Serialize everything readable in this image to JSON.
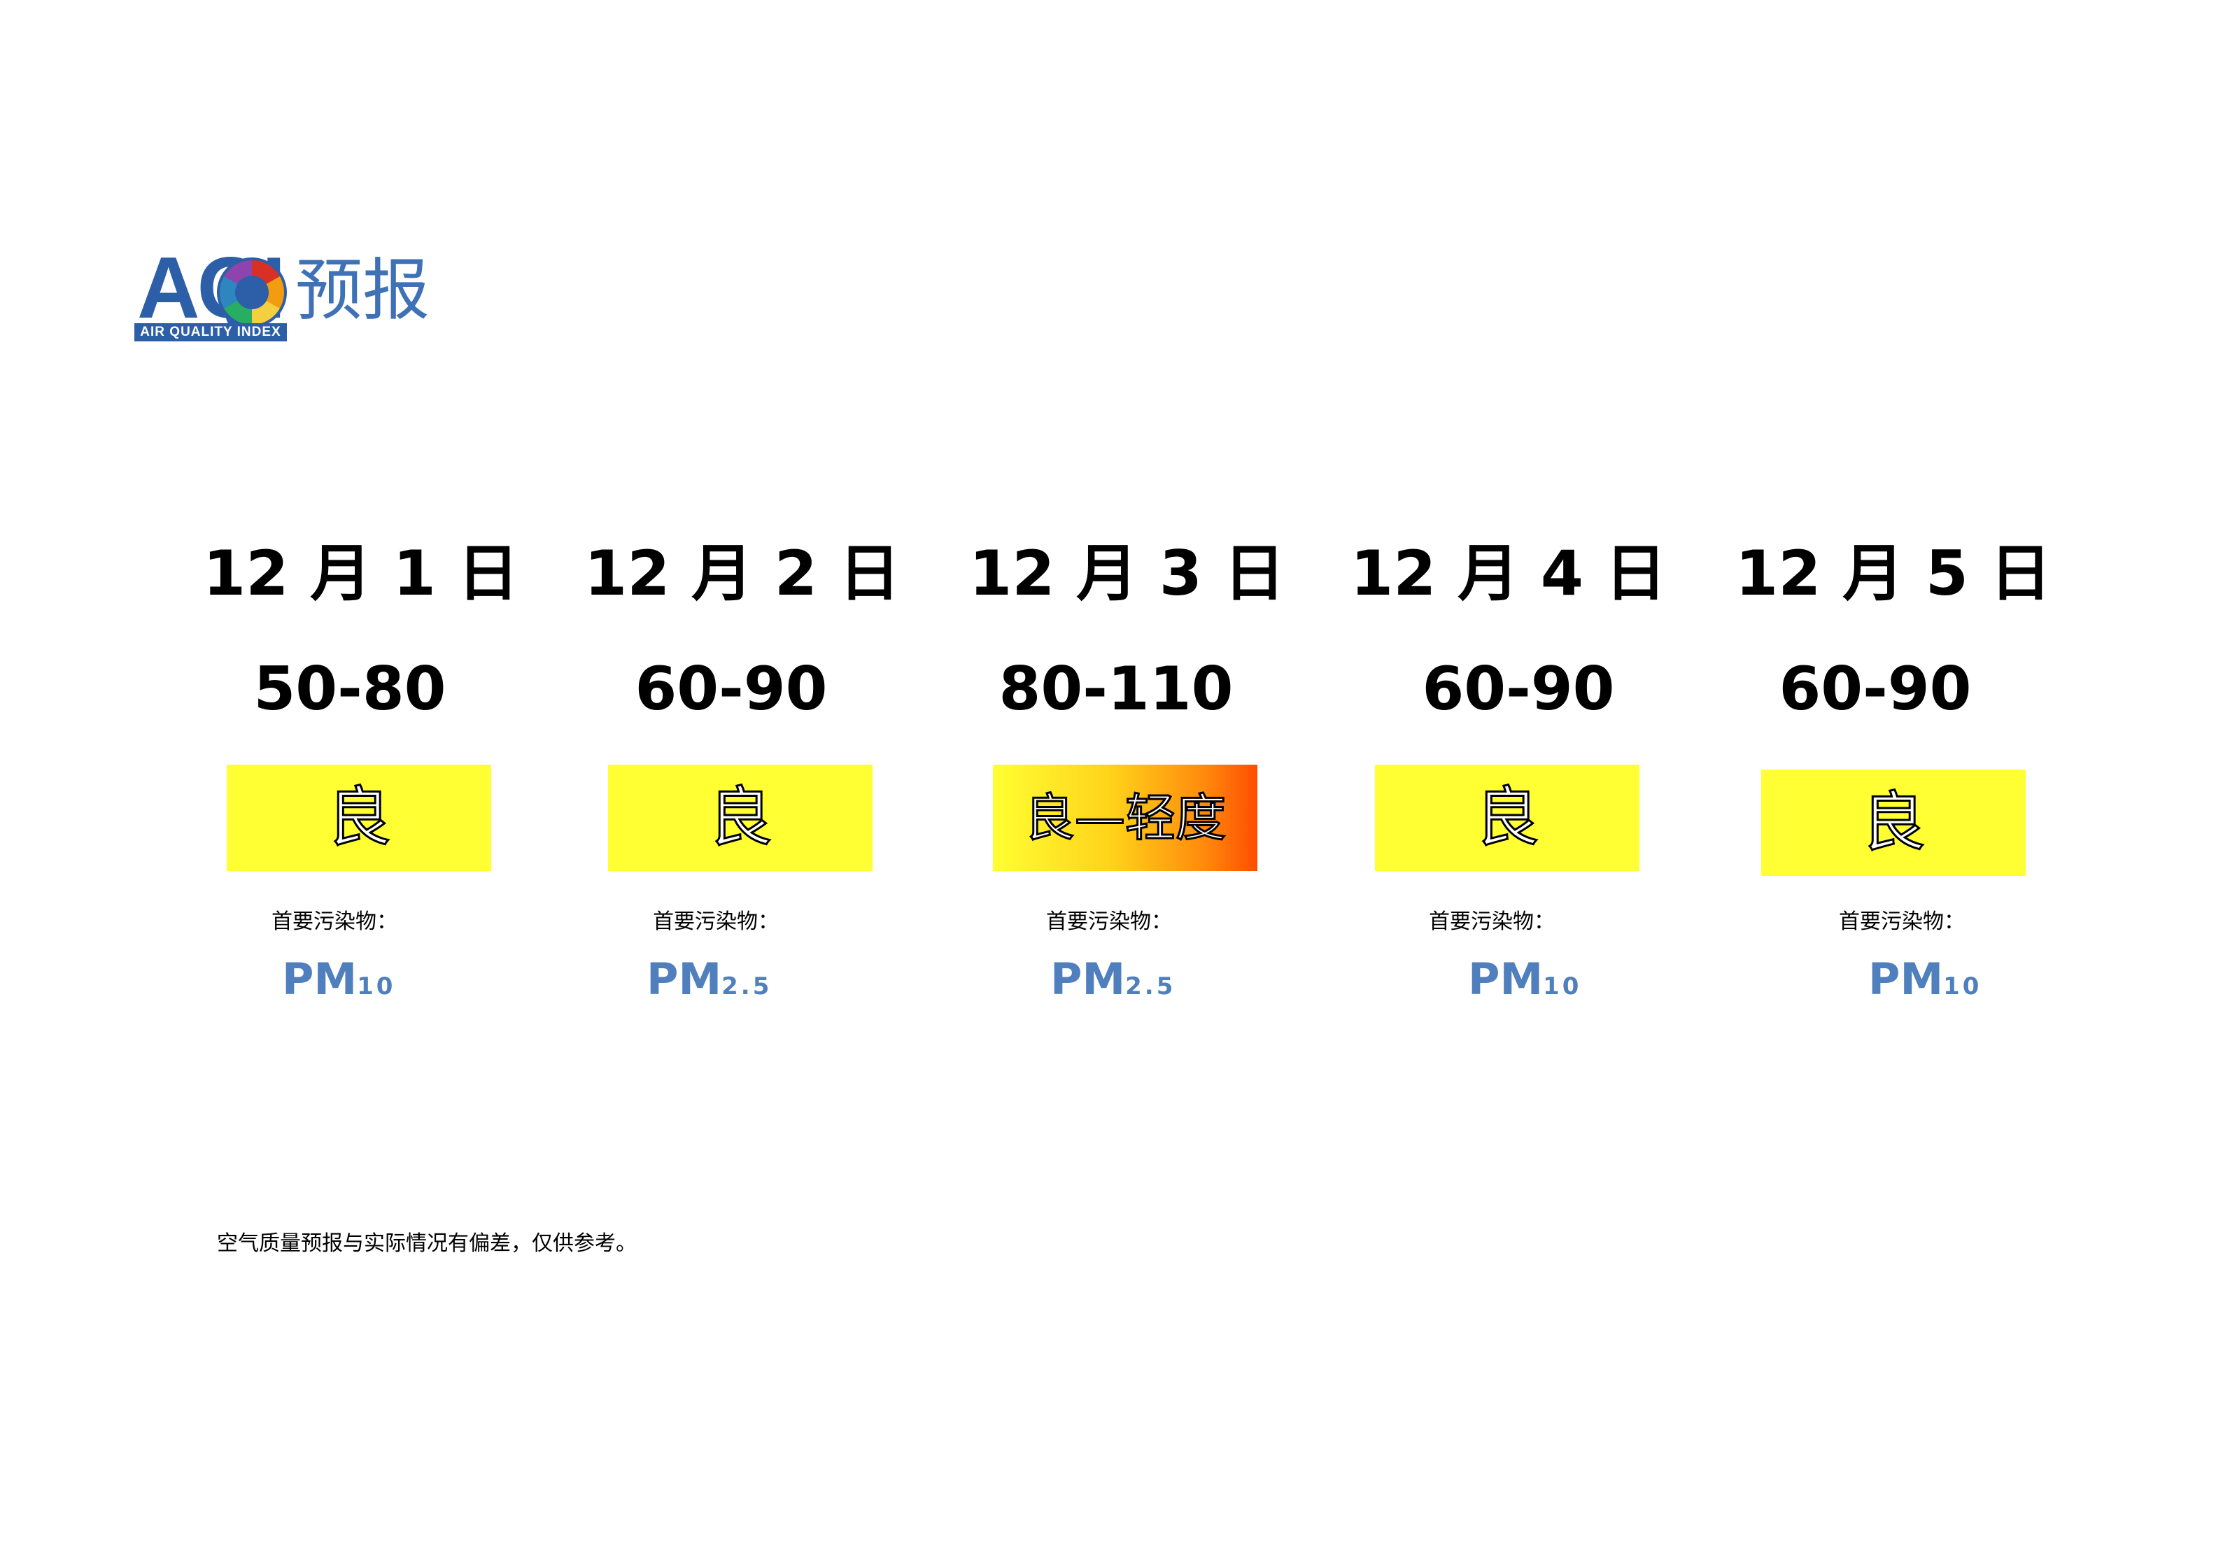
{
  "logo": {
    "mark": "AQI",
    "tagline": "AIR QUALITY INDEX",
    "title": "预报"
  },
  "forecast": [
    {
      "date": "12 月 1 日",
      "range": "50-80",
      "level": "良",
      "pollutant_label": "首要污染物：",
      "pollutant": "PM",
      "pollutant_sub": "10"
    },
    {
      "date": "12 月 2 日",
      "range": "60-90",
      "level": "良",
      "pollutant_label": "首要污染物：",
      "pollutant": "PM",
      "pollutant_sub": "2.5"
    },
    {
      "date": "12 月 3 日",
      "range": "80-110",
      "level": "良—轻度",
      "pollutant_label": "首要污染物：",
      "pollutant": "PM",
      "pollutant_sub": "2.5"
    },
    {
      "date": "12 月 4 日",
      "range": "60-90",
      "level": "良",
      "pollutant_label": "首要污染物：",
      "pollutant": "PM",
      "pollutant_sub": "10"
    },
    {
      "date": "12 月 5 日",
      "range": "60-90",
      "level": "良",
      "pollutant_label": "首要污染物：",
      "pollutant": "PM",
      "pollutant_sub": "10"
    }
  ],
  "colors": {
    "good": "#ffff33",
    "light_pollution": "#ff4d00",
    "pollutant_text": "#4f7fbd",
    "logo_blue": "#2d5ea8"
  },
  "footnote": "空气质量预报与实际情况有偏差，仅供参考。"
}
